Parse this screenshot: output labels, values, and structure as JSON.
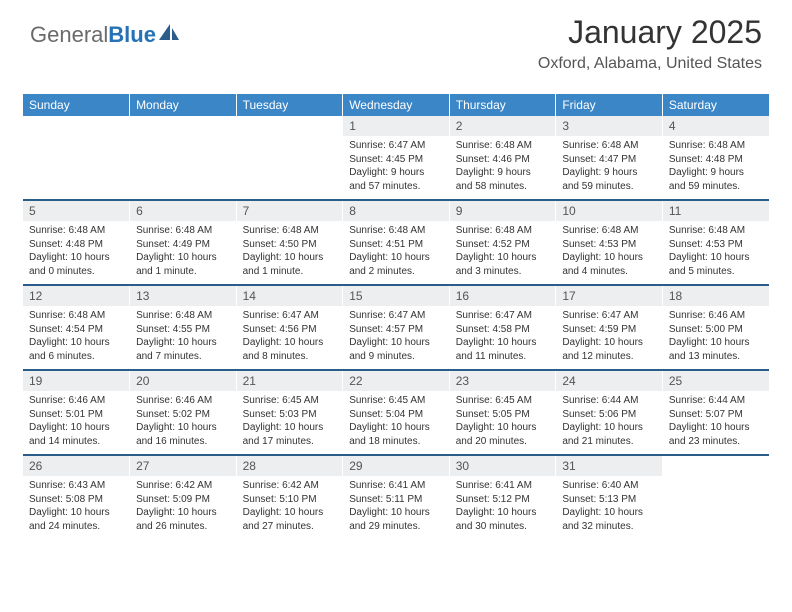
{
  "brand": {
    "part1": "General",
    "part2": "Blue",
    "icon_color": "#2a5d8a"
  },
  "title": "January 2025",
  "subtitle": "Oxford, Alabama, United States",
  "colors": {
    "header_bg": "#3b86c7",
    "header_text": "#ffffff",
    "daynum_bg": "#eceeef",
    "week_sep": "#2a5d8a",
    "body_text": "#333333",
    "background": "#ffffff"
  },
  "fontsizes": {
    "title": 32,
    "subtitle": 16,
    "dayheader": 12,
    "daynum": 12,
    "detail": 10
  },
  "day_headers": [
    "Sunday",
    "Monday",
    "Tuesday",
    "Wednesday",
    "Thursday",
    "Friday",
    "Saturday"
  ],
  "weeks": [
    [
      null,
      null,
      null,
      {
        "n": "1",
        "sr": "Sunrise: 6:47 AM",
        "ss": "Sunset: 4:45 PM",
        "d1": "Daylight: 9 hours",
        "d2": "and 57 minutes."
      },
      {
        "n": "2",
        "sr": "Sunrise: 6:48 AM",
        "ss": "Sunset: 4:46 PM",
        "d1": "Daylight: 9 hours",
        "d2": "and 58 minutes."
      },
      {
        "n": "3",
        "sr": "Sunrise: 6:48 AM",
        "ss": "Sunset: 4:47 PM",
        "d1": "Daylight: 9 hours",
        "d2": "and 59 minutes."
      },
      {
        "n": "4",
        "sr": "Sunrise: 6:48 AM",
        "ss": "Sunset: 4:48 PM",
        "d1": "Daylight: 9 hours",
        "d2": "and 59 minutes."
      }
    ],
    [
      {
        "n": "5",
        "sr": "Sunrise: 6:48 AM",
        "ss": "Sunset: 4:48 PM",
        "d1": "Daylight: 10 hours",
        "d2": "and 0 minutes."
      },
      {
        "n": "6",
        "sr": "Sunrise: 6:48 AM",
        "ss": "Sunset: 4:49 PM",
        "d1": "Daylight: 10 hours",
        "d2": "and 1 minute."
      },
      {
        "n": "7",
        "sr": "Sunrise: 6:48 AM",
        "ss": "Sunset: 4:50 PM",
        "d1": "Daylight: 10 hours",
        "d2": "and 1 minute."
      },
      {
        "n": "8",
        "sr": "Sunrise: 6:48 AM",
        "ss": "Sunset: 4:51 PM",
        "d1": "Daylight: 10 hours",
        "d2": "and 2 minutes."
      },
      {
        "n": "9",
        "sr": "Sunrise: 6:48 AM",
        "ss": "Sunset: 4:52 PM",
        "d1": "Daylight: 10 hours",
        "d2": "and 3 minutes."
      },
      {
        "n": "10",
        "sr": "Sunrise: 6:48 AM",
        "ss": "Sunset: 4:53 PM",
        "d1": "Daylight: 10 hours",
        "d2": "and 4 minutes."
      },
      {
        "n": "11",
        "sr": "Sunrise: 6:48 AM",
        "ss": "Sunset: 4:53 PM",
        "d1": "Daylight: 10 hours",
        "d2": "and 5 minutes."
      }
    ],
    [
      {
        "n": "12",
        "sr": "Sunrise: 6:48 AM",
        "ss": "Sunset: 4:54 PM",
        "d1": "Daylight: 10 hours",
        "d2": "and 6 minutes."
      },
      {
        "n": "13",
        "sr": "Sunrise: 6:48 AM",
        "ss": "Sunset: 4:55 PM",
        "d1": "Daylight: 10 hours",
        "d2": "and 7 minutes."
      },
      {
        "n": "14",
        "sr": "Sunrise: 6:47 AM",
        "ss": "Sunset: 4:56 PM",
        "d1": "Daylight: 10 hours",
        "d2": "and 8 minutes."
      },
      {
        "n": "15",
        "sr": "Sunrise: 6:47 AM",
        "ss": "Sunset: 4:57 PM",
        "d1": "Daylight: 10 hours",
        "d2": "and 9 minutes."
      },
      {
        "n": "16",
        "sr": "Sunrise: 6:47 AM",
        "ss": "Sunset: 4:58 PM",
        "d1": "Daylight: 10 hours",
        "d2": "and 11 minutes."
      },
      {
        "n": "17",
        "sr": "Sunrise: 6:47 AM",
        "ss": "Sunset: 4:59 PM",
        "d1": "Daylight: 10 hours",
        "d2": "and 12 minutes."
      },
      {
        "n": "18",
        "sr": "Sunrise: 6:46 AM",
        "ss": "Sunset: 5:00 PM",
        "d1": "Daylight: 10 hours",
        "d2": "and 13 minutes."
      }
    ],
    [
      {
        "n": "19",
        "sr": "Sunrise: 6:46 AM",
        "ss": "Sunset: 5:01 PM",
        "d1": "Daylight: 10 hours",
        "d2": "and 14 minutes."
      },
      {
        "n": "20",
        "sr": "Sunrise: 6:46 AM",
        "ss": "Sunset: 5:02 PM",
        "d1": "Daylight: 10 hours",
        "d2": "and 16 minutes."
      },
      {
        "n": "21",
        "sr": "Sunrise: 6:45 AM",
        "ss": "Sunset: 5:03 PM",
        "d1": "Daylight: 10 hours",
        "d2": "and 17 minutes."
      },
      {
        "n": "22",
        "sr": "Sunrise: 6:45 AM",
        "ss": "Sunset: 5:04 PM",
        "d1": "Daylight: 10 hours",
        "d2": "and 18 minutes."
      },
      {
        "n": "23",
        "sr": "Sunrise: 6:45 AM",
        "ss": "Sunset: 5:05 PM",
        "d1": "Daylight: 10 hours",
        "d2": "and 20 minutes."
      },
      {
        "n": "24",
        "sr": "Sunrise: 6:44 AM",
        "ss": "Sunset: 5:06 PM",
        "d1": "Daylight: 10 hours",
        "d2": "and 21 minutes."
      },
      {
        "n": "25",
        "sr": "Sunrise: 6:44 AM",
        "ss": "Sunset: 5:07 PM",
        "d1": "Daylight: 10 hours",
        "d2": "and 23 minutes."
      }
    ],
    [
      {
        "n": "26",
        "sr": "Sunrise: 6:43 AM",
        "ss": "Sunset: 5:08 PM",
        "d1": "Daylight: 10 hours",
        "d2": "and 24 minutes."
      },
      {
        "n": "27",
        "sr": "Sunrise: 6:42 AM",
        "ss": "Sunset: 5:09 PM",
        "d1": "Daylight: 10 hours",
        "d2": "and 26 minutes."
      },
      {
        "n": "28",
        "sr": "Sunrise: 6:42 AM",
        "ss": "Sunset: 5:10 PM",
        "d1": "Daylight: 10 hours",
        "d2": "and 27 minutes."
      },
      {
        "n": "29",
        "sr": "Sunrise: 6:41 AM",
        "ss": "Sunset: 5:11 PM",
        "d1": "Daylight: 10 hours",
        "d2": "and 29 minutes."
      },
      {
        "n": "30",
        "sr": "Sunrise: 6:41 AM",
        "ss": "Sunset: 5:12 PM",
        "d1": "Daylight: 10 hours",
        "d2": "and 30 minutes."
      },
      {
        "n": "31",
        "sr": "Sunrise: 6:40 AM",
        "ss": "Sunset: 5:13 PM",
        "d1": "Daylight: 10 hours",
        "d2": "and 32 minutes."
      },
      null
    ]
  ]
}
